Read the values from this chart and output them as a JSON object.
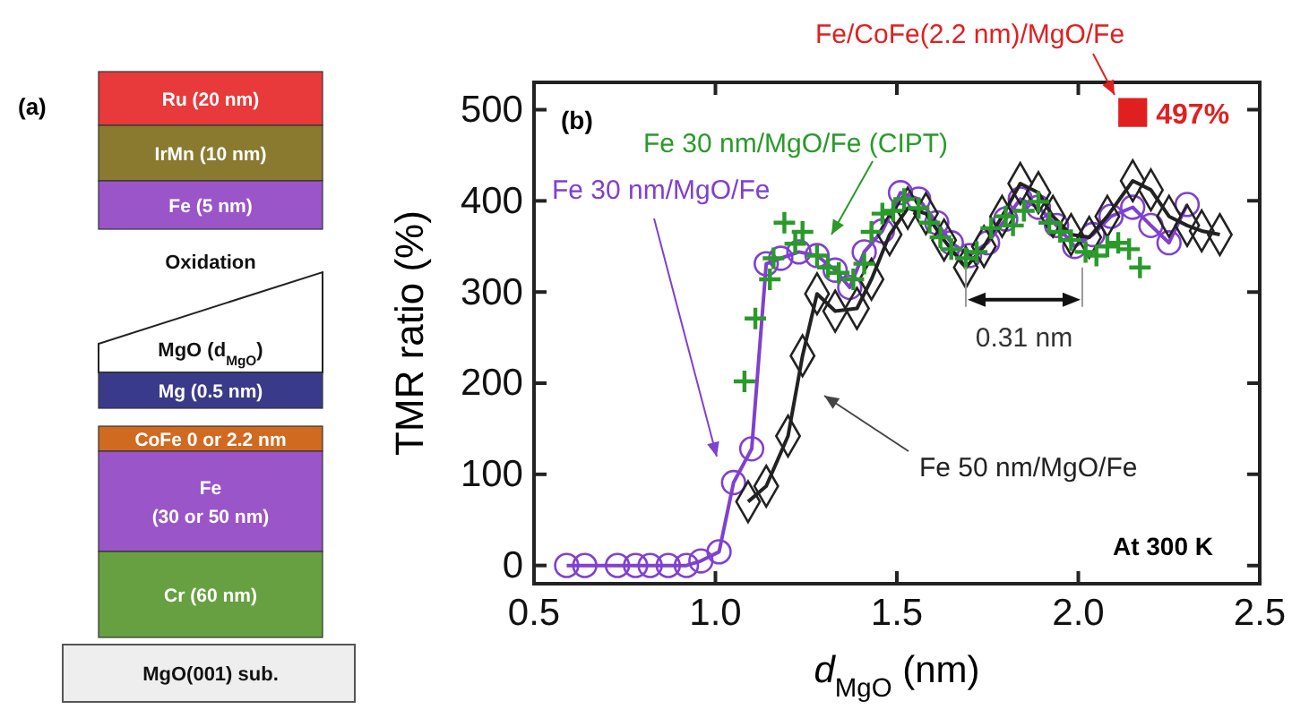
{
  "chart_data": [
    {
      "type": "other",
      "title": "(a)",
      "annotations": [
        "Ru (20 nm)",
        "IrMn (10 nm)",
        "Fe (5 nm)",
        "Oxidation",
        "MgO (d$_{MgO}$)",
        "Mg (0.5 nm)",
        "CoFe 0 or 2.2 nm",
        "Fe",
        "(30 or 50 nm)",
        "Cr (60 nm)",
        "MgO(001) sub."
      ]
    },
    {
      "type": "line",
      "xlabel": "d$_{MgO}$ (nm)",
      "ylabel": "TMR ratio (%)",
      "xlim": [
        0.5,
        2.5
      ],
      "ylim": [
        -20,
        530
      ],
      "xticks": [
        {
          "value": 0.5,
          "label": "0.5"
        },
        {
          "value": 1,
          "label": "1.0"
        },
        {
          "value": 1.5,
          "label": "1.5"
        },
        {
          "value": 2,
          "label": "2.0"
        },
        {
          "value": 2.5,
          "label": "2.5"
        }
      ],
      "yticks": [
        0,
        100,
        200,
        300,
        400,
        500
      ],
      "grid": false,
      "line_style": "solid",
      "annotations": [
        "(b)",
        {
          "text": "0.31 nm",
          "x": 1.69,
          "y": 327
        },
        "At 300 K"
      ],
      "series": [
        {
          "name": "Fe 30 nm/MgO/Fe",
          "type": "line",
          "marker": "circle",
          "color": "#8040d0",
          "x": [
            0.59,
            0.64,
            0.73,
            0.78,
            0.82,
            0.87,
            0.92,
            0.96,
            1.01,
            1.05,
            1.1,
            1.14,
            1.18,
            1.23,
            1.28,
            1.33,
            1.37,
            1.41,
            1.46,
            1.51,
            1.56,
            1.61,
            1.65,
            1.7,
            1.75,
            1.8,
            1.84,
            1.89,
            1.94,
            1.99,
            2.04,
            2.09,
            2.15,
            2.2,
            2.25,
            2.3
          ],
          "values": [
            0,
            0,
            0,
            0,
            0,
            0,
            0,
            5,
            15,
            91,
            128,
            331,
            337,
            344,
            340,
            324,
            305,
            344,
            367,
            409,
            402,
            376,
            354,
            340,
            354,
            380,
            402,
            393,
            373,
            350,
            363,
            383,
            393,
            373,
            354,
            396
          ]
        },
        {
          "name": "Fe 50 nm/MgO/Fe",
          "type": "line",
          "marker": "diamond",
          "color": "#222222",
          "x": [
            1.09,
            1.14,
            1.2,
            1.24,
            1.28,
            1.33,
            1.39,
            1.43,
            1.48,
            1.53,
            1.58,
            1.63,
            1.69,
            1.74,
            1.79,
            1.84,
            1.89,
            1.93,
            1.98,
            2.03,
            2.08,
            2.15,
            2.2,
            2.25,
            2.3,
            2.34,
            2.39
          ],
          "values": [
            70,
            87,
            142,
            230,
            298,
            279,
            282,
            314,
            363,
            392,
            386,
            357,
            327,
            350,
            383,
            419,
            409,
            383,
            363,
            360,
            383,
            422,
            412,
            383,
            373,
            367,
            363
          ]
        },
        {
          "name": "Fe 30 nm/MgO/Fe (CIPT)",
          "type": "scatter",
          "marker": "cross",
          "color": "#2a9a2a",
          "x": [
            1.08,
            1.11,
            1.15,
            1.16,
            1.19,
            1.22,
            1.24,
            1.28,
            1.31,
            1.34,
            1.38,
            1.41,
            1.43,
            1.46,
            1.49,
            1.52,
            1.56,
            1.59,
            1.62,
            1.65,
            1.69,
            1.72,
            1.76,
            1.8,
            1.82,
            1.85,
            1.89,
            1.92,
            1.95,
            1.98,
            2.02,
            2.05,
            2.08,
            2.11,
            2.14,
            2.17
          ],
          "values": [
            202,
            271,
            314,
            337,
            376,
            353,
            366,
            340,
            327,
            321,
            314,
            331,
            366,
            386,
            389,
            402,
            392,
            376,
            360,
            347,
            337,
            344,
            370,
            383,
            373,
            389,
            399,
            376,
            366,
            357,
            344,
            340,
            350,
            354,
            347,
            327
          ]
        },
        {
          "name": "Fe/CoFe(2.2 nm)/MgO/Fe",
          "type": "scatter",
          "marker": "square",
          "color": "#e02020",
          "x": [
            2.15
          ],
          "values": [
            497
          ],
          "value_labels": [
            "497%"
          ]
        }
      ]
    }
  ]
}
